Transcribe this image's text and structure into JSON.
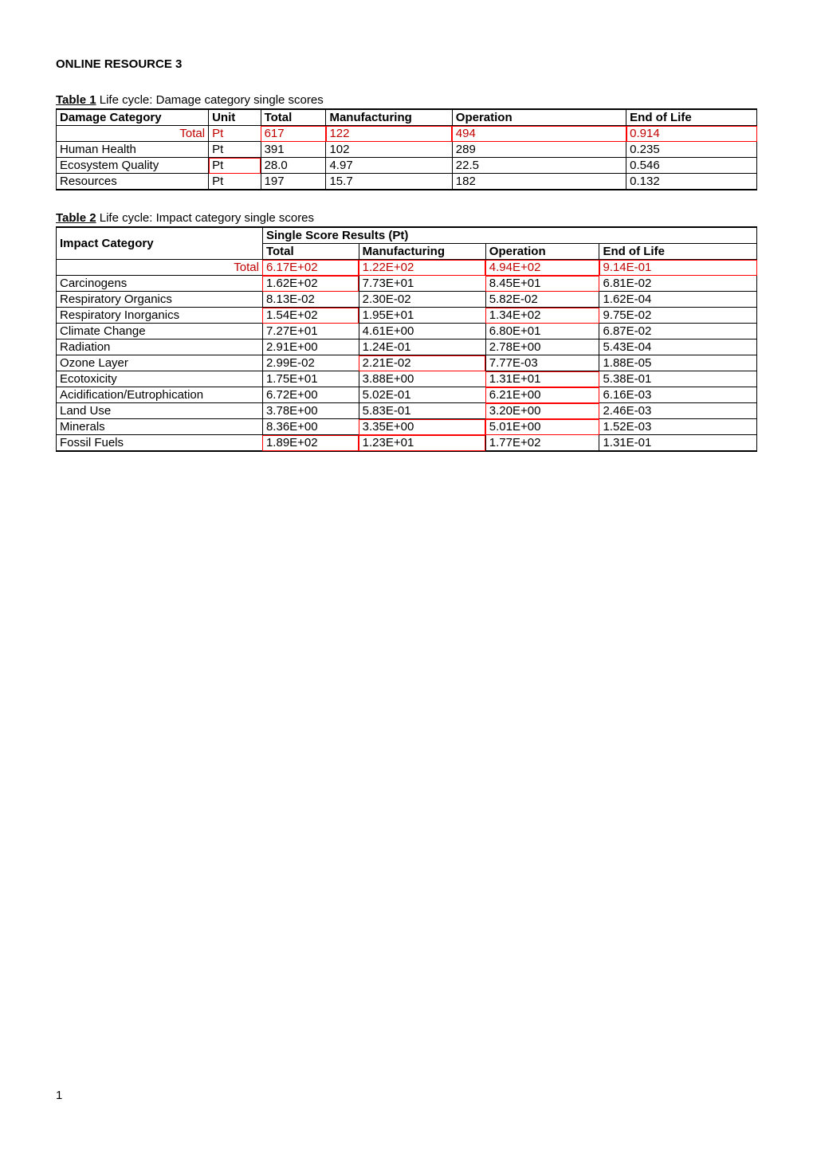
{
  "page_title": "ONLINE RESOURCE 3",
  "table1": {
    "caption_label": "Table 1",
    "caption_text": " Life cycle: Damage category single scores",
    "headers": [
      "Damage Category",
      "Unit",
      "Total",
      "Manufacturing",
      "Operation",
      "End of Life"
    ],
    "total_label": "Total",
    "total_unit": "Pt",
    "total_row": [
      "617",
      "122",
      "494",
      "0.914"
    ],
    "rows": [
      {
        "cat": "Human Health",
        "unit": "Pt",
        "total": "391",
        "manu": "102",
        "op": "289",
        "eol": "0.235"
      },
      {
        "cat": "Ecosystem Quality",
        "unit": "Pt",
        "total": "28.0",
        "manu": "4.97",
        "op": "22.5",
        "eol": "0.546"
      },
      {
        "cat": "Resources",
        "unit": "Pt",
        "total": "197",
        "manu": "15.7",
        "op": "182",
        "eol": "0.132"
      }
    ],
    "redboxes": {
      "total_row_indices": [
        0,
        1,
        2,
        3
      ],
      "body": [
        {
          "r": 1,
          "c": "unit"
        }
      ]
    }
  },
  "table2": {
    "caption_label": "Table 2",
    "caption_text": " Life cycle: Impact category single scores",
    "header_col1": "Impact Category",
    "header_group": "Single Score Results (Pt)",
    "subheaders": [
      "Total",
      "Manufacturing",
      "Operation",
      "End of Life"
    ],
    "total_label": "Total",
    "total_row": [
      "6.17E+02",
      "1.22E+02",
      "4.94E+02",
      "9.14E-01"
    ],
    "rows": [
      {
        "cat": "Carcinogens",
        "total": "1.62E+02",
        "manu": "7.73E+01",
        "op": "8.45E+01",
        "eol": "6.81E-02"
      },
      {
        "cat": "Respiratory Organics",
        "total": "8.13E-02",
        "manu": "2.30E-02",
        "op": "5.82E-02",
        "eol": "1.62E-04"
      },
      {
        "cat": "Respiratory Inorganics",
        "total": "1.54E+02",
        "manu": "1.95E+01",
        "op": "1.34E+02",
        "eol": "9.75E-02"
      },
      {
        "cat": "Climate Change",
        "total": "7.27E+01",
        "manu": "4.61E+00",
        "op": "6.80E+01",
        "eol": "6.87E-02"
      },
      {
        "cat": "Radiation",
        "total": "2.91E+00",
        "manu": "1.24E-01",
        "op": "2.78E+00",
        "eol": "5.43E-04"
      },
      {
        "cat": "Ozone Layer",
        "total": "2.99E-02",
        "manu": "2.21E-02",
        "op": "7.77E-03",
        "eol": "1.88E-05"
      },
      {
        "cat": "Ecotoxicity",
        "total": "1.75E+01",
        "manu": "3.88E+00",
        "op": "1.31E+01",
        "eol": "5.38E-01"
      },
      {
        "cat": "Acidification/Eutrophication",
        "total": "6.72E+00",
        "manu": "5.02E-01",
        "op": "6.21E+00",
        "eol": "6.16E-03"
      },
      {
        "cat": "Land Use",
        "total": "3.78E+00",
        "manu": "5.83E-01",
        "op": "3.20E+00",
        "eol": "2.46E-03"
      },
      {
        "cat": "Minerals",
        "total": "8.36E+00",
        "manu": "3.35E+00",
        "op": "5.01E+00",
        "eol": "1.52E-03"
      },
      {
        "cat": "Fossil Fuels",
        "total": "1.89E+02",
        "manu": "1.23E+01",
        "op": "1.77E+02",
        "eol": "1.31E-01"
      }
    ],
    "redboxes": {
      "total_row_indices": [
        0,
        1,
        2,
        3
      ],
      "body": [
        {
          "r": 0,
          "c": "total"
        },
        {
          "r": 0,
          "c": "op"
        },
        {
          "r": 2,
          "c": "total"
        },
        {
          "r": 2,
          "c": "op"
        },
        {
          "r": 5,
          "c": "manu"
        },
        {
          "r": 6,
          "c": "op"
        },
        {
          "r": 7,
          "c": "op"
        },
        {
          "r": 8,
          "c": "op"
        },
        {
          "r": 9,
          "c": "manu"
        },
        {
          "r": 9,
          "c": "op"
        },
        {
          "r": 10,
          "c": "total"
        },
        {
          "r": 10,
          "c": "manu"
        }
      ]
    }
  },
  "page_number": "1"
}
